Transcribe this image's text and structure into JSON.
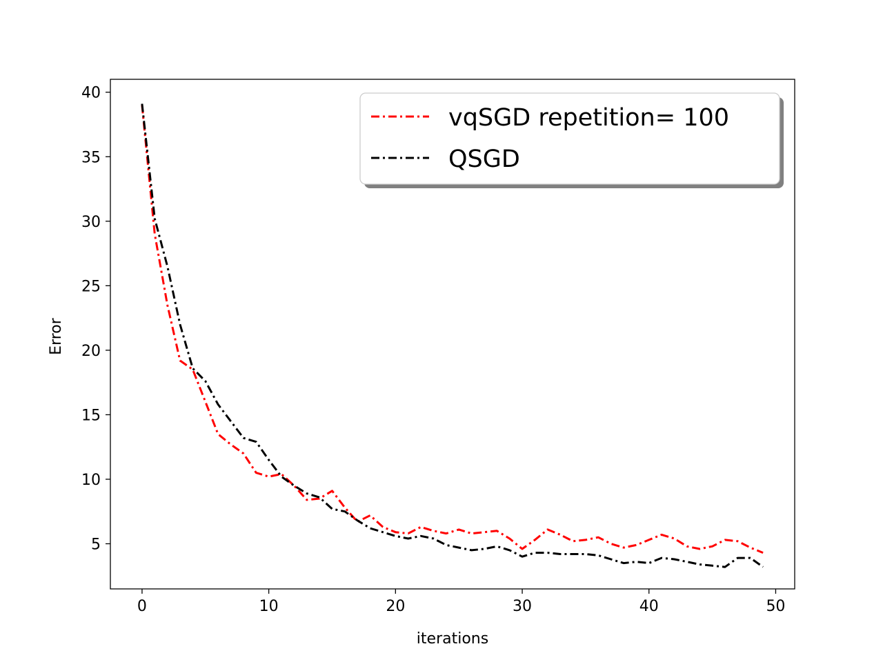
{
  "chart_data": {
    "type": "line",
    "title": "",
    "xlabel": "iterations",
    "ylabel": "Error",
    "xlim": [
      -2.5,
      51.5
    ],
    "ylim": [
      1.5,
      41
    ],
    "xticks": [
      0,
      10,
      20,
      30,
      40,
      50
    ],
    "yticks": [
      5,
      10,
      15,
      20,
      25,
      30,
      35,
      40
    ],
    "grid": false,
    "legend_position": "top-right",
    "series": [
      {
        "name": "vqSGD repetition= 100",
        "color": "#ff0000",
        "linestyle": "dashdot",
        "x": [
          0,
          1,
          2,
          3,
          4,
          5,
          6,
          7,
          8,
          9,
          10,
          11,
          12,
          13,
          14,
          15,
          16,
          17,
          18,
          19,
          20,
          21,
          22,
          23,
          24,
          25,
          26,
          27,
          28,
          29,
          30,
          31,
          32,
          33,
          34,
          35,
          36,
          37,
          38,
          39,
          40,
          41,
          42,
          43,
          44,
          45,
          46,
          47,
          48,
          49
        ],
        "values": [
          39.0,
          29.0,
          23.5,
          19.2,
          18.5,
          16.0,
          13.5,
          12.7,
          12.0,
          10.5,
          10.2,
          10.4,
          9.5,
          8.4,
          8.5,
          9.1,
          7.8,
          6.7,
          7.2,
          6.3,
          5.9,
          5.8,
          6.3,
          6.0,
          5.8,
          6.1,
          5.8,
          5.9,
          6.0,
          5.4,
          4.6,
          5.3,
          6.1,
          5.7,
          5.2,
          5.3,
          5.5,
          5.0,
          4.7,
          4.9,
          5.3,
          5.7,
          5.4,
          4.8,
          4.6,
          4.8,
          5.3,
          5.2,
          4.7,
          4.3
        ]
      },
      {
        "name": "QSGD",
        "color": "#000000",
        "linestyle": "dashdot",
        "x": [
          0,
          1,
          2,
          3,
          4,
          5,
          6,
          7,
          8,
          9,
          10,
          11,
          12,
          13,
          14,
          15,
          16,
          17,
          18,
          19,
          20,
          21,
          22,
          23,
          24,
          25,
          26,
          27,
          28,
          29,
          30,
          31,
          32,
          33,
          34,
          35,
          36,
          37,
          38,
          39,
          40,
          41,
          42,
          43,
          44,
          45,
          46,
          47,
          48,
          49
        ],
        "values": [
          39.1,
          30.2,
          26.5,
          22.0,
          18.6,
          17.6,
          15.8,
          14.5,
          13.2,
          12.9,
          11.5,
          10.2,
          9.5,
          8.9,
          8.6,
          7.7,
          7.5,
          6.8,
          6.2,
          5.9,
          5.6,
          5.4,
          5.6,
          5.4,
          4.9,
          4.7,
          4.5,
          4.6,
          4.8,
          4.5,
          4.0,
          4.3,
          4.3,
          4.2,
          4.2,
          4.2,
          4.1,
          3.8,
          3.5,
          3.6,
          3.5,
          3.9,
          3.8,
          3.6,
          3.4,
          3.3,
          3.2,
          3.9,
          3.9,
          3.2
        ]
      }
    ]
  }
}
